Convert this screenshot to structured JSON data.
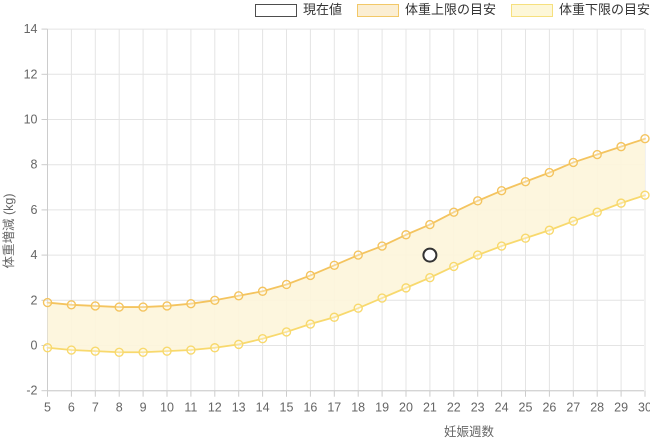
{
  "chart_data": {
    "type": "line",
    "title": "",
    "xlabel": "妊娠週数",
    "ylabel": "体重増減 (kg)",
    "x": [
      5,
      6,
      7,
      8,
      9,
      10,
      11,
      12,
      13,
      14,
      15,
      16,
      17,
      18,
      19,
      20,
      21,
      22,
      23,
      24,
      25,
      26,
      27,
      28,
      29,
      30
    ],
    "y_ticks": [
      14,
      12,
      10,
      8,
      6,
      4,
      2,
      0,
      -2
    ],
    "ylim": [
      -2,
      14
    ],
    "grid": true,
    "legend_position": "top",
    "legend": [
      {
        "label": "現在値",
        "swatch_fill": "#ffffff",
        "swatch_border": "#4d4d4d"
      },
      {
        "label": "体重上限の目安",
        "swatch_fill": "#fbeed3",
        "swatch_border": "#f2c868"
      },
      {
        "label": "体重下限の目安",
        "swatch_fill": "#fdf7d8",
        "swatch_border": "#f6e07e"
      }
    ],
    "series": [
      {
        "name": "体重上限の目安",
        "color": "#f4c45f",
        "values": [
          1.9,
          1.8,
          1.75,
          1.7,
          1.7,
          1.75,
          1.85,
          2.0,
          2.2,
          2.4,
          2.7,
          3.1,
          3.55,
          4.0,
          4.4,
          4.9,
          5.35,
          5.9,
          6.4,
          6.85,
          7.25,
          7.65,
          8.1,
          8.45,
          8.8,
          9.15
        ]
      },
      {
        "name": "体重下限の目安",
        "color": "#f8d96d",
        "values": [
          -0.1,
          -0.2,
          -0.25,
          -0.3,
          -0.3,
          -0.25,
          -0.2,
          -0.1,
          0.05,
          0.3,
          0.6,
          0.95,
          1.25,
          1.65,
          2.1,
          2.55,
          3.0,
          3.5,
          4.0,
          4.4,
          4.75,
          5.1,
          5.5,
          5.9,
          6.3,
          6.65
        ]
      }
    ],
    "band_fill": "#fdf5da",
    "current_value": {
      "name": "現在値",
      "week": 21,
      "value": 4.0,
      "stroke": "#333333",
      "fill": "#ffffff"
    },
    "colors": {
      "grid": "#e4e4e4",
      "axis": "#cccccc",
      "tick_text": "#666666",
      "legend_text": "#333333"
    }
  }
}
